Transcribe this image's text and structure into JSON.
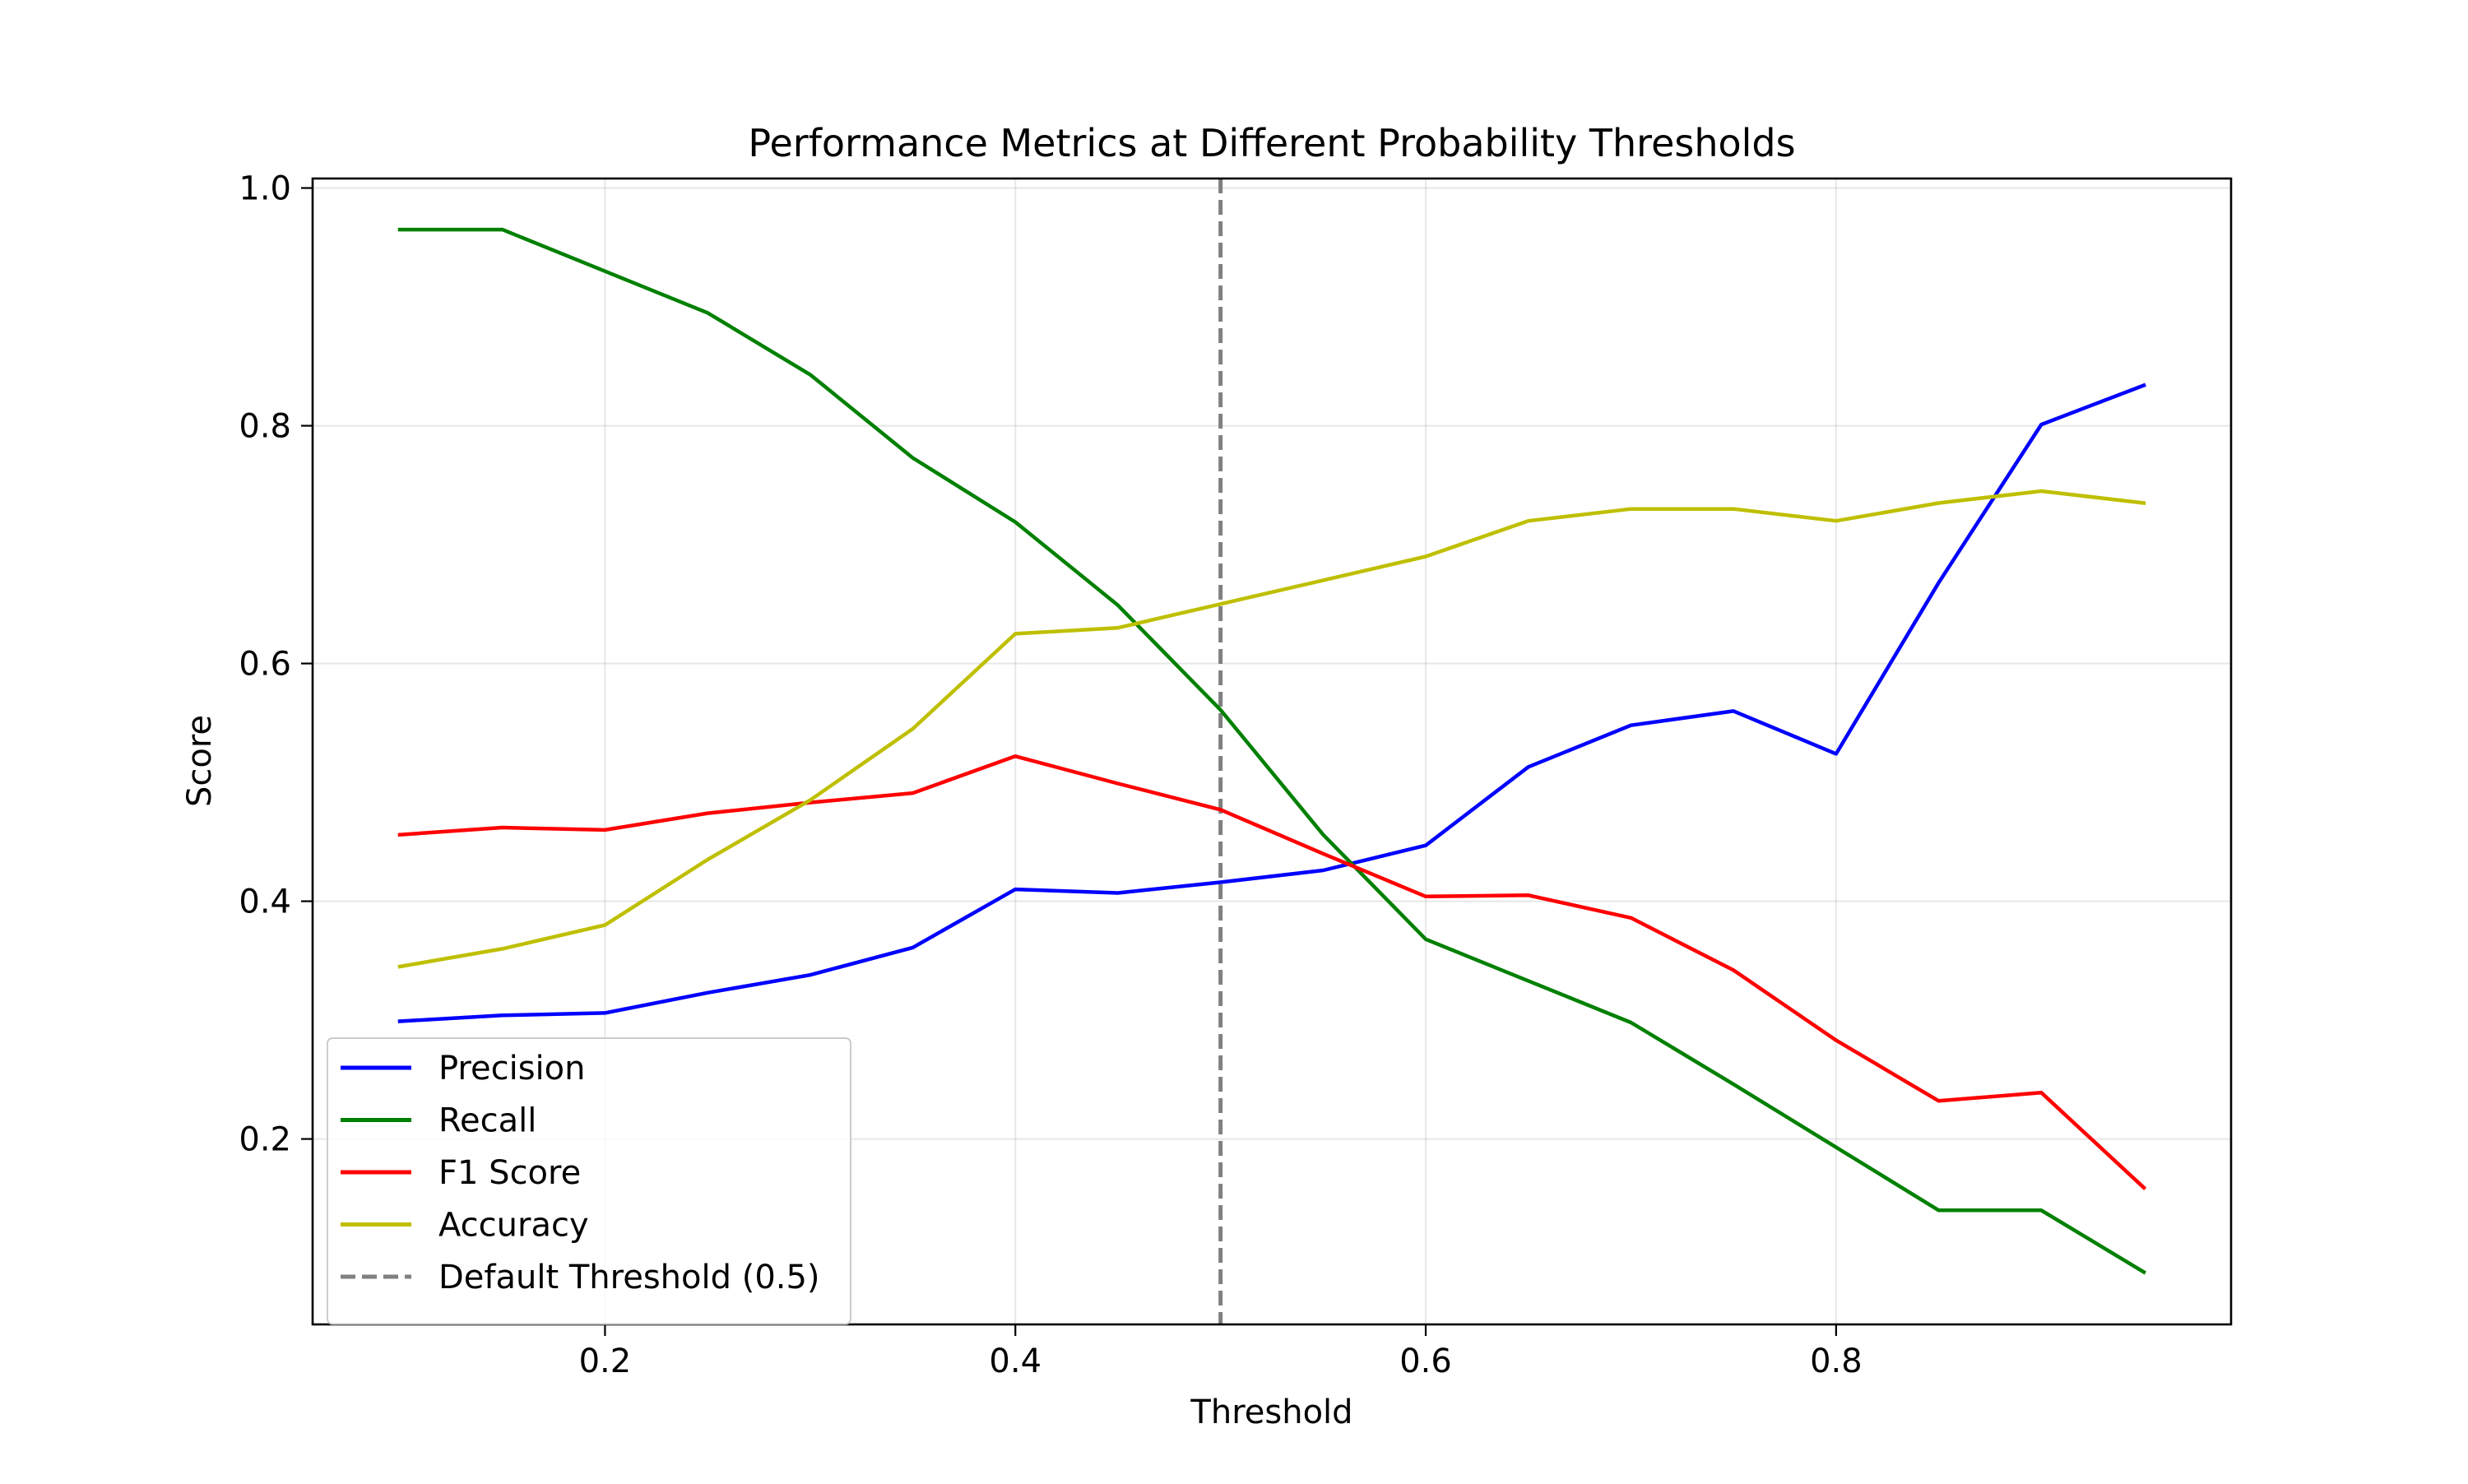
{
  "chart_data": {
    "type": "line",
    "title": "Performance Metrics at Different Probability Thresholds",
    "xlabel": "Threshold",
    "ylabel": "Score",
    "x": [
      0.1,
      0.15,
      0.2,
      0.25,
      0.3,
      0.35,
      0.4,
      0.45,
      0.5,
      0.55,
      0.6,
      0.65,
      0.7,
      0.75,
      0.8,
      0.85,
      0.9,
      0.95
    ],
    "xlim": [
      0.0575,
      0.9925
    ],
    "ylim": [
      0.044,
      1.008
    ],
    "xticks": [
      0.2,
      0.4,
      0.6,
      0.8
    ],
    "xtick_labels": [
      "0.2",
      "0.4",
      "0.6",
      "0.8"
    ],
    "yticks": [
      0.2,
      0.4,
      0.6,
      0.8,
      1.0
    ],
    "ytick_labels": [
      "0.2",
      "0.4",
      "0.6",
      "0.8",
      "1.0"
    ],
    "grid": true,
    "legend_position": "lower-left",
    "series": [
      {
        "name": "Precision",
        "color": "#0000ff",
        "dash": "solid",
        "values": [
          0.299,
          0.304,
          0.306,
          0.323,
          0.338,
          0.361,
          0.41,
          0.407,
          0.416,
          0.426,
          0.447,
          0.513,
          0.548,
          0.56,
          0.524,
          0.668,
          0.801,
          0.834
        ]
      },
      {
        "name": "Recall",
        "color": "#008000",
        "dash": "solid",
        "values": [
          0.965,
          0.965,
          0.93,
          0.895,
          0.843,
          0.773,
          0.719,
          0.649,
          0.561,
          0.456,
          0.368,
          0.333,
          0.298,
          0.246,
          0.193,
          0.14,
          0.14,
          0.088
        ]
      },
      {
        "name": "F1 Score",
        "color": "#ff0000",
        "dash": "solid",
        "values": [
          0.456,
          0.462,
          0.46,
          0.474,
          0.483,
          0.491,
          0.522,
          0.499,
          0.477,
          0.44,
          0.404,
          0.405,
          0.386,
          0.342,
          0.283,
          0.232,
          0.239,
          0.159
        ]
      },
      {
        "name": "Accuracy",
        "color": "#bfbf00",
        "dash": "solid",
        "values": [
          0.345,
          0.36,
          0.38,
          0.435,
          0.485,
          0.545,
          0.625,
          0.63,
          0.65,
          0.67,
          0.69,
          0.72,
          0.73,
          0.73,
          0.72,
          0.735,
          0.745,
          0.735
        ]
      }
    ],
    "vlines": [
      {
        "name": "Default Threshold (0.5)",
        "x": 0.5,
        "color": "#808080",
        "dash": "dashed"
      }
    ]
  }
}
